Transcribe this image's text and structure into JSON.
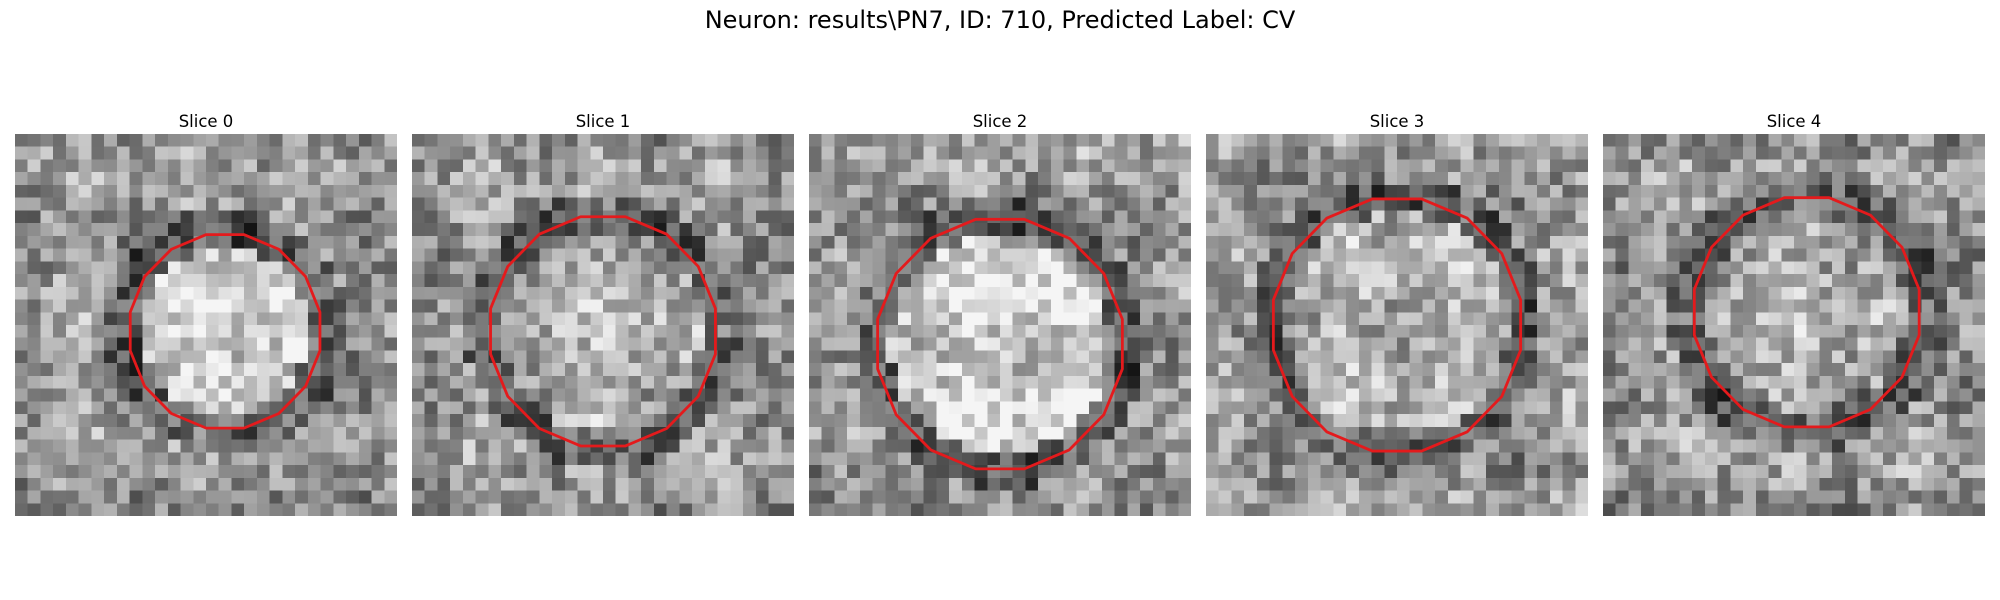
{
  "figure": {
    "title": "Neuron: results\\PN7, ID: 710, Predicted Label: CV"
  },
  "panels": [
    {
      "title": "Slice 0",
      "ring": "dark",
      "core": "bright",
      "seed": 11
    },
    {
      "title": "Slice 1",
      "ring": "dark",
      "core": "mid",
      "seed": 23
    },
    {
      "title": "Slice 2",
      "ring": "dark",
      "core": "bright",
      "seed": 37
    },
    {
      "title": "Slice 3",
      "ring": "dark",
      "core": "mid",
      "seed": 51
    },
    {
      "title": "Slice 4",
      "ring": "dark",
      "core": "mid",
      "seed": 67
    }
  ],
  "contour_color": "#e41a1c",
  "colormap": "grayscale"
}
